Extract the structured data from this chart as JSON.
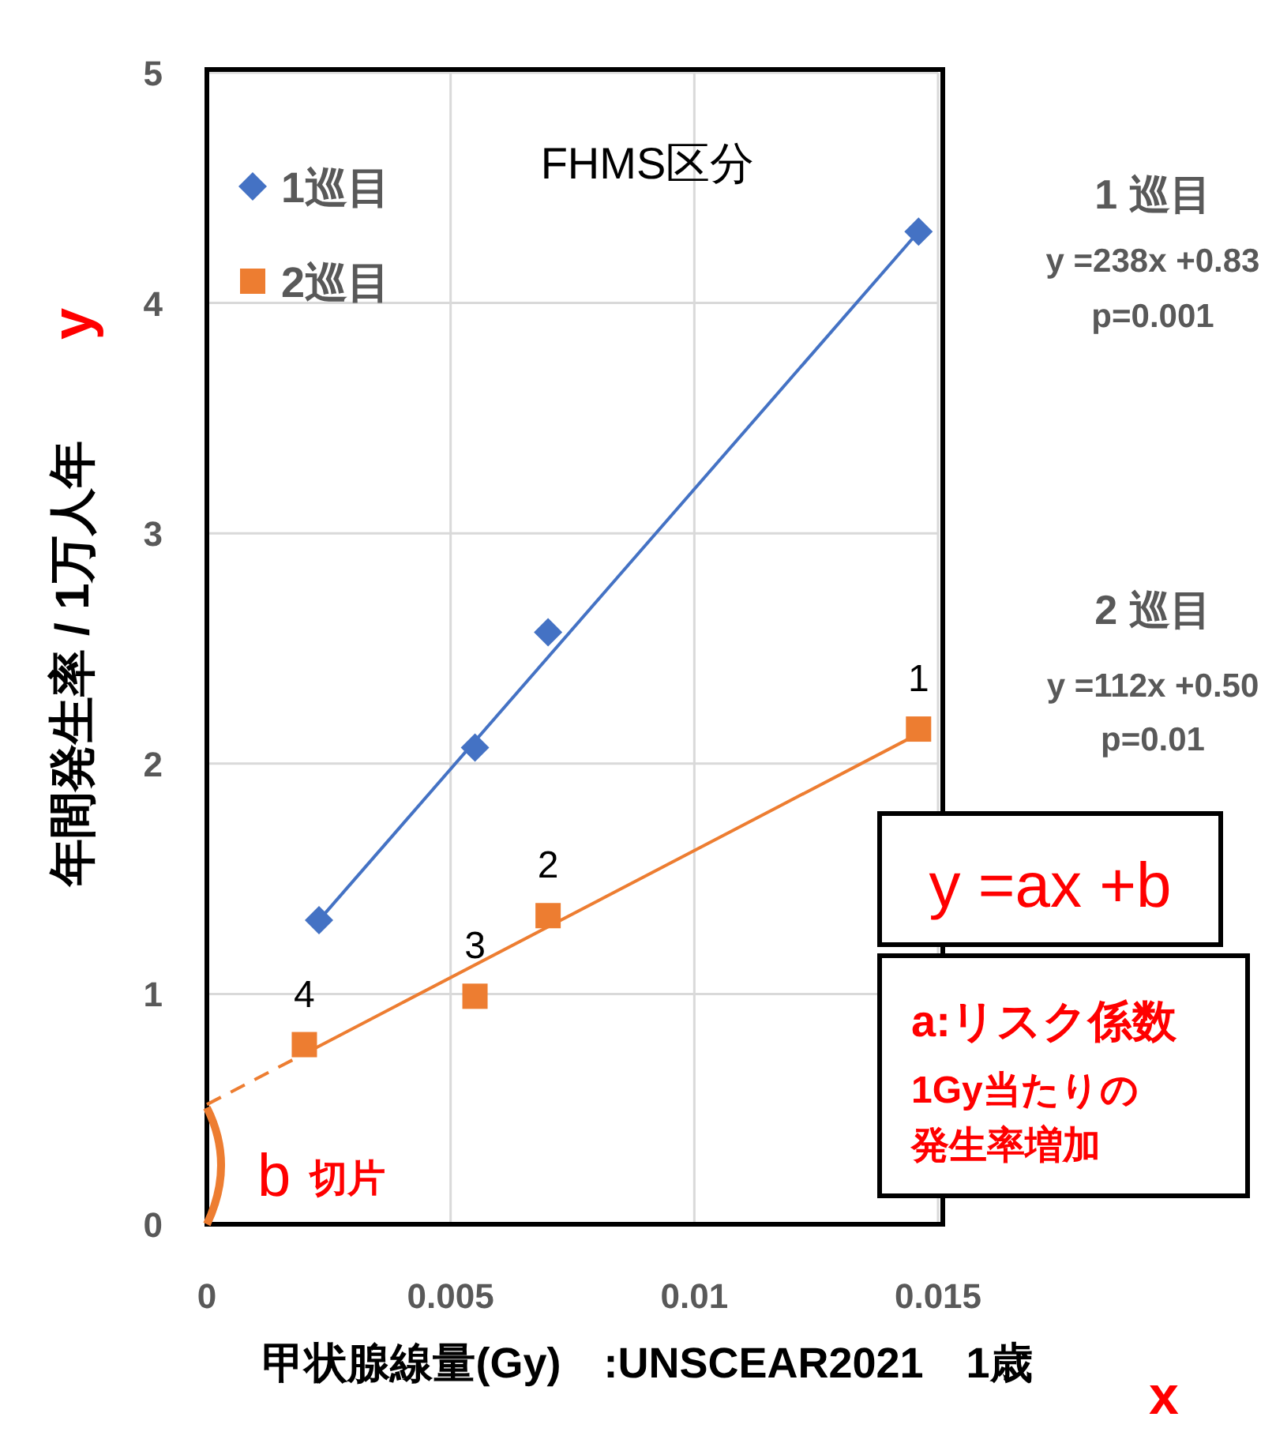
{
  "chart_data": {
    "type": "scatter",
    "title": "FHMS区分",
    "xlabel": "甲状腺線量(Gy)　:UNSCEAR2021　1歳",
    "ylabel": "年間発生率 / 1万人年",
    "xlim": [
      0,
      0.015
    ],
    "ylim": [
      0,
      5
    ],
    "xticks": [
      0,
      0.005,
      0.01,
      0.015
    ],
    "yticks": [
      0,
      1,
      2,
      3,
      4,
      5
    ],
    "grid": true,
    "legend": "top left",
    "series": [
      {
        "name": "1巡目",
        "type": "scatter",
        "marker": "diamond",
        "color": "#4472c4",
        "x": [
          0.0023,
          0.0055,
          0.007,
          0.0146
        ],
        "values": [
          1.32,
          2.07,
          2.57,
          4.31
        ]
      },
      {
        "name": "2巡目",
        "type": "scatter",
        "marker": "square",
        "color": "#ed7d31",
        "x": [
          0.002,
          0.0055,
          0.007,
          0.0146
        ],
        "values": [
          0.78,
          0.99,
          1.34,
          2.15
        ]
      },
      {
        "type": "line",
        "marker": "none",
        "line_style": "solid",
        "color": "#4472c4",
        "x": [
          0.0023,
          0.0146
        ],
        "values": [
          1.32,
          4.31
        ]
      },
      {
        "type": "line",
        "marker": "none",
        "line_style": "solid",
        "color": "#ed7d31",
        "x": [
          0.002,
          0.0146
        ],
        "values": [
          0.74,
          2.13
        ]
      },
      {
        "type": "line",
        "marker": "none",
        "line_style": "dashed",
        "color": "#ed7d31",
        "x": [
          0,
          0.002
        ],
        "values": [
          0.52,
          0.74
        ]
      }
    ],
    "annotations": [
      {
        "text": "4",
        "x": 0.002,
        "y": 0.78
      },
      {
        "text": "3",
        "x": 0.0055,
        "y": 0.99
      },
      {
        "text": "2",
        "x": 0.007,
        "y": 1.34
      },
      {
        "text": "1",
        "x": 0.0146,
        "y": 2.15
      },
      "1 巡目",
      "y =238x +0.83",
      "p=0.001",
      "2 巡目",
      "y =112x +0.50",
      "p=0.01",
      "y =ax +b",
      "a:リスク係数",
      "1Gy当たりの",
      "発生率増加",
      "b",
      "切片",
      "y",
      "x"
    ]
  }
}
